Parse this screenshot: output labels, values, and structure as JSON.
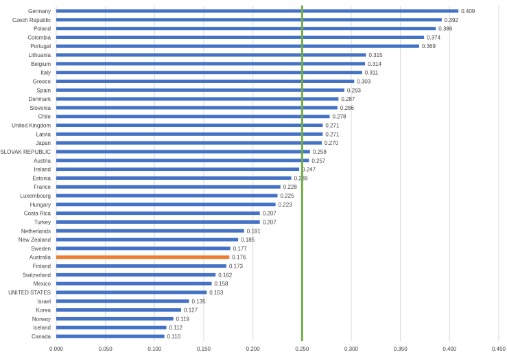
{
  "chart_data": {
    "type": "bar",
    "orientation": "horizontal",
    "categories": [
      "Germany",
      "Czech Republic",
      "Poland",
      "Colombia",
      "Portugal",
      "Lithuania",
      "Belgium",
      "Italy",
      "Greece",
      "Spain",
      "Denmark",
      "Slovenia",
      "Chile",
      "United Kingdom",
      "Latvia",
      "Japan",
      "SLOVAK REPUBLIC",
      "Austria",
      "Ireland",
      "Estonia",
      "France",
      "Luxembourg",
      "Hungary",
      "Costa Rica",
      "Turkey",
      "Netherlands",
      "New Zealand",
      "Sweden",
      "Australia",
      "Finland",
      "Switzerland",
      "Mexico",
      "UNITED STATES",
      "Israel",
      "Korea",
      "Norway",
      "Iceland",
      "Canada"
    ],
    "values": [
      0.409,
      0.392,
      0.386,
      0.374,
      0.369,
      0.315,
      0.314,
      0.311,
      0.303,
      0.293,
      0.287,
      0.286,
      0.278,
      0.271,
      0.271,
      0.27,
      0.258,
      0.257,
      0.247,
      0.239,
      0.228,
      0.225,
      0.223,
      0.207,
      0.207,
      0.191,
      0.185,
      0.177,
      0.176,
      0.173,
      0.162,
      0.158,
      0.153,
      0.135,
      0.127,
      0.119,
      0.112,
      0.11
    ],
    "value_labels": [
      "0.409",
      "0.392",
      "0.386",
      "0.374",
      "0.369",
      "0.315",
      "0.314",
      "0.311",
      "0.303",
      "0.293",
      "0.287",
      "0.286",
      "0.278",
      "0.271",
      "0.271",
      "0.270",
      "0.258",
      "0.257",
      "0.247",
      "0.239",
      "0.228",
      "0.225",
      "0.223",
      "0.207",
      "0.207",
      "0.191",
      "0.185",
      "0.177",
      "0.176",
      "0.173",
      "0.162",
      "0.158",
      "0.153",
      "0.135",
      "0.127",
      "0.119",
      "0.112",
      "0.110"
    ],
    "highlight_category": "Australia",
    "reference_line": 0.25,
    "xlim": [
      0,
      0.45
    ],
    "x_ticks": [
      "0.000",
      "0.050",
      "0.100",
      "0.150",
      "0.200",
      "0.250",
      "0.300",
      "0.350",
      "0.400",
      "0.450"
    ],
    "grid": true,
    "legend": "none",
    "title": "",
    "xlabel": "",
    "ylabel": "",
    "colors": {
      "bar": "#4472c4",
      "highlight": "#ed7d31",
      "reference_line": "#70ad47"
    }
  }
}
